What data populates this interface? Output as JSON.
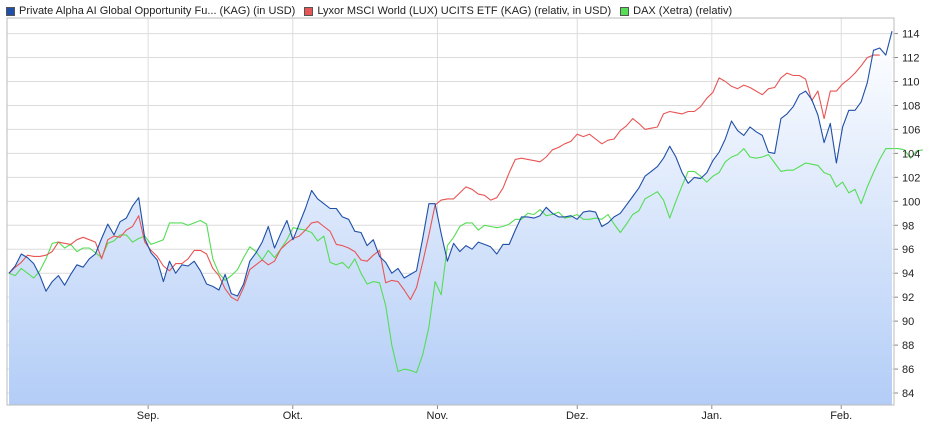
{
  "chart_data": {
    "type": "line",
    "title": "",
    "xlabel": "",
    "ylabel": "",
    "x_tick_labels": [
      "Sep.",
      "Okt.",
      "Nov.",
      "Dez.",
      "Jan.",
      "Feb."
    ],
    "y_ticks": [
      84,
      86,
      88,
      90,
      92,
      94,
      96,
      98,
      100,
      102,
      104,
      106,
      108,
      110,
      112,
      114
    ],
    "ylim": [
      83,
      115.3
    ],
    "grid": true,
    "legend_position": "top-left",
    "series": [
      {
        "name": "Private Alpha AI Global Opportunity Fu... (KAG) (in USD)",
        "color": "#1f4fa8",
        "fill": true,
        "values": [
          94.0,
          94.6,
          95.6,
          95.3,
          94.8,
          93.8,
          92.5,
          93.3,
          93.8,
          93.0,
          93.9,
          94.7,
          94.5,
          95.2,
          95.6,
          96.9,
          98.1,
          97.2,
          98.3,
          98.6,
          99.6,
          100.3,
          96.9,
          95.7,
          95.1,
          93.3,
          95.0,
          94.0,
          94.7,
          94.6,
          95.0,
          94.2,
          93.1,
          92.9,
          92.6,
          93.9,
          92.3,
          92.1,
          93.1,
          95.0,
          95.7,
          96.6,
          97.9,
          96.1,
          97.3,
          98.4,
          96.8,
          98.1,
          99.4,
          100.9,
          100.2,
          99.8,
          99.4,
          99.4,
          98.7,
          98.5,
          97.5,
          97.4,
          96.3,
          96.8,
          95.4,
          94.9,
          94.0,
          94.4,
          93.6,
          93.9,
          94.2,
          96.9,
          99.8,
          99.8,
          97.3,
          95.0,
          96.5,
          95.8,
          96.3,
          96.0,
          96.6,
          96.4,
          96.2,
          95.6,
          96.4,
          96.4,
          97.6,
          98.7,
          98.7,
          98.6,
          98.8,
          99.5,
          99.0,
          98.7,
          98.7,
          98.8,
          98.5,
          99.1,
          99.2,
          99.1,
          97.9,
          98.2,
          98.7,
          99.0,
          99.7,
          100.4,
          101.1,
          102.1,
          102.5,
          102.9,
          103.6,
          104.6,
          103.7,
          102.4,
          101.5,
          102.0,
          101.9,
          102.4,
          103.4,
          104.1,
          105.2,
          106.7,
          105.9,
          105.5,
          106.2,
          105.8,
          105.5,
          104.1,
          104.0,
          106.9,
          107.3,
          107.9,
          108.9,
          109.2,
          108.5,
          107.2,
          104.9,
          106.5,
          103.2,
          106.2,
          107.6,
          107.6,
          108.3,
          109.9,
          112.6,
          112.8,
          112.2,
          114.2
        ]
      },
      {
        "name": "Lyxor MSCI World (LUX) UCITS ETF (KAG) (relativ, in USD)",
        "color": "#e85555",
        "fill": false,
        "values": [
          94.0,
          94.5,
          94.9,
          95.5,
          95.4,
          95.4,
          95.5,
          95.8,
          96.6,
          96.5,
          96.4,
          96.8,
          97.0,
          96.8,
          96.6,
          95.2,
          96.8,
          97.1,
          97.0,
          97.6,
          97.9,
          98.8,
          96.6,
          95.9,
          95.4,
          94.6,
          94.2,
          94.8,
          94.8,
          95.2,
          95.9,
          95.9,
          95.6,
          94.4,
          93.8,
          92.7,
          92.0,
          91.7,
          92.8,
          94.3,
          94.7,
          95.1,
          94.7,
          95.0,
          96.0,
          96.5,
          96.9,
          97.1,
          97.6,
          98.2,
          98.3,
          97.9,
          97.5,
          96.4,
          96.3,
          96.1,
          95.8,
          95.1,
          95.0,
          95.5,
          95.9,
          93.2,
          93.4,
          93.3,
          92.6,
          91.8,
          92.8,
          94.9,
          97.2,
          99.7,
          100.1,
          100.2,
          100.2,
          100.7,
          101.2,
          101.0,
          100.6,
          100.5,
          100.1,
          100.3,
          101.1,
          102.4,
          103.5,
          103.6,
          103.5,
          103.4,
          103.3,
          103.7,
          104.3,
          104.5,
          104.8,
          105.0,
          105.6,
          105.4,
          105.6,
          105.2,
          104.8,
          105.1,
          105.2,
          105.9,
          106.3,
          106.9,
          106.5,
          106.0,
          106.1,
          106.2,
          107.3,
          107.5,
          107.4,
          107.3,
          107.5,
          107.5,
          107.9,
          108.6,
          109.1,
          110.3,
          110.0,
          109.6,
          109.4,
          109.7,
          109.5,
          109.2,
          108.9,
          109.4,
          109.5,
          110.3,
          110.7,
          110.5,
          110.5,
          110.2,
          108.4,
          109.2,
          106.9,
          109.2,
          109.2,
          109.8,
          110.2,
          110.7,
          111.3,
          112.0,
          112.2,
          112.2
        ]
      },
      {
        "name": "DAX (Xetra) (relativ)",
        "color": "#55dd55",
        "fill": false,
        "values": [
          94.0,
          93.8,
          94.4,
          94.0,
          93.6,
          94.2,
          95.2,
          96.5,
          96.6,
          96.1,
          96.4,
          95.8,
          96.1,
          96.1,
          95.7,
          95.3,
          96.5,
          96.7,
          97.2,
          97.2,
          96.6,
          96.9,
          97.1,
          96.4,
          96.6,
          96.8,
          98.2,
          98.2,
          98.2,
          98.0,
          98.2,
          98.4,
          98.1,
          95.2,
          94.0,
          93.4,
          93.8,
          94.3,
          95.3,
          96.2,
          95.8,
          95.1,
          95.9,
          95.3,
          96.0,
          96.8,
          97.8,
          97.7,
          97.6,
          97.4,
          96.7,
          97.1,
          94.9,
          94.7,
          94.9,
          94.4,
          95.2,
          94.0,
          93.1,
          93.3,
          93.2,
          91.3,
          88.0,
          85.8,
          86.0,
          85.9,
          85.7,
          87.2,
          89.5,
          93.3,
          92.2,
          96.3,
          97.0,
          97.9,
          98.2,
          98.2,
          97.6,
          98.0,
          97.9,
          97.8,
          97.9,
          98.1,
          98.5,
          98.5,
          99.0,
          98.9,
          99.3,
          98.8,
          98.9,
          99.1,
          98.6,
          98.7,
          98.9,
          98.5,
          98.5,
          98.6,
          98.5,
          98.9,
          98.1,
          97.4,
          98.1,
          98.9,
          99.2,
          100.2,
          100.5,
          100.8,
          100.1,
          98.6,
          100.0,
          101.3,
          102.5,
          102.5,
          102.1,
          101.6,
          102.1,
          102.4,
          103.3,
          103.7,
          103.9,
          104.4,
          103.7,
          103.6,
          103.7,
          103.9,
          103.2,
          102.5,
          102.6,
          102.6,
          102.9,
          103.2,
          103.1,
          103.0,
          102.4,
          102.2,
          101.2,
          101.6,
          100.7,
          101.0,
          99.8,
          101.2,
          102.4,
          103.5,
          104.4,
          104.4,
          104.4,
          104.3,
          103.6,
          104.2,
          104.3
        ]
      }
    ]
  }
}
